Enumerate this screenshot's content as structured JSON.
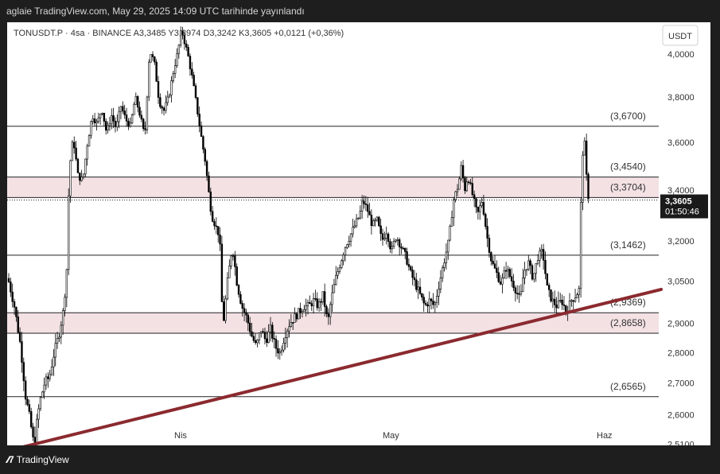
{
  "header": {
    "title": "aglaie TradingView.com, May 29, 2025 14:09 UTC tarihinde yayınlandı"
  },
  "footer": {
    "logo_icon": "tradingview-logo-icon",
    "brand": "TradingView"
  },
  "chart_data": {
    "type": "candlestick",
    "symbol_line": "TONUSDT.P · 4sa · BINANCE  A3,3485  Y3,3974  D3,3242  K3,3605  +0,0121 (+0,36%)",
    "currency": "USDT",
    "y_ticks": [
      "4,0000",
      "3,8000",
      "3,6000",
      "3,4000",
      "3,2000",
      "3,0500",
      "2,9000",
      "2,8000",
      "2,7000",
      "2,6000",
      "2,5100"
    ],
    "y_tick_values": [
      4.0,
      3.8,
      3.6,
      3.4,
      3.2,
      3.05,
      2.9,
      2.8,
      2.7,
      2.6,
      2.51
    ],
    "x_ticks": [
      "Nis",
      "May",
      "Haz"
    ],
    "levels": [
      {
        "label": "(3,6700)",
        "value": 3.67
      },
      {
        "label": "(3,4540)",
        "value": 3.454
      },
      {
        "label": "(3,3704)",
        "value": 3.3704
      },
      {
        "label": "(3,1462)",
        "value": 3.1462
      },
      {
        "label": "(2,9369)",
        "value": 2.9369
      },
      {
        "label": "(2,8658)",
        "value": 2.8658
      },
      {
        "label": "(2,6565)",
        "value": 2.6565
      }
    ],
    "zones": [
      {
        "from": 3.3704,
        "to": 3.454,
        "color": "#f3e1e4"
      },
      {
        "from": 2.8658,
        "to": 2.9369,
        "color": "#f3e1e4"
      }
    ],
    "trendline": {
      "color": "#8b2a2f",
      "from_price": 2.49,
      "to_price": 3.02
    },
    "price_tag": {
      "value": "3,3605",
      "countdown": "01:50:46",
      "price": 3.3605
    },
    "path_points": [
      [
        0,
        3.06
      ],
      [
        8,
        2.96
      ],
      [
        16,
        2.82
      ],
      [
        22,
        2.66
      ],
      [
        28,
        2.58
      ],
      [
        33,
        2.5
      ],
      [
        36,
        2.57
      ],
      [
        40,
        2.64
      ],
      [
        46,
        2.7
      ],
      [
        52,
        2.72
      ],
      [
        58,
        2.8
      ],
      [
        64,
        2.86
      ],
      [
        70,
        2.95
      ],
      [
        74,
        3.1
      ],
      [
        77,
        3.48
      ],
      [
        82,
        3.62
      ],
      [
        88,
        3.46
      ],
      [
        94,
        3.44
      ],
      [
        100,
        3.6
      ],
      [
        106,
        3.72
      ],
      [
        112,
        3.68
      ],
      [
        118,
        3.75
      ],
      [
        124,
        3.64
      ],
      [
        130,
        3.72
      ],
      [
        136,
        3.66
      ],
      [
        142,
        3.76
      ],
      [
        148,
        3.7
      ],
      [
        154,
        3.67
      ],
      [
        160,
        3.8
      ],
      [
        166,
        3.72
      ],
      [
        172,
        3.62
      ],
      [
        178,
        4.02
      ],
      [
        184,
        3.96
      ],
      [
        190,
        3.78
      ],
      [
        196,
        3.74
      ],
      [
        202,
        3.8
      ],
      [
        208,
        3.92
      ],
      [
        214,
        4.02
      ],
      [
        218,
        4.12
      ],
      [
        222,
        4.06
      ],
      [
        226,
        4.0
      ],
      [
        232,
        3.88
      ],
      [
        238,
        3.74
      ],
      [
        244,
        3.6
      ],
      [
        248,
        3.52
      ],
      [
        252,
        3.4
      ],
      [
        256,
        3.3
      ],
      [
        262,
        3.25
      ],
      [
        266,
        3.22
      ],
      [
        270,
        2.88
      ],
      [
        276,
        3.05
      ],
      [
        282,
        3.18
      ],
      [
        288,
        3.04
      ],
      [
        294,
        2.96
      ],
      [
        300,
        2.92
      ],
      [
        306,
        2.86
      ],
      [
        312,
        2.82
      ],
      [
        318,
        2.88
      ],
      [
        324,
        2.84
      ],
      [
        330,
        2.88
      ],
      [
        336,
        2.82
      ],
      [
        342,
        2.8
      ],
      [
        348,
        2.86
      ],
      [
        354,
        2.9
      ],
      [
        360,
        2.92
      ],
      [
        366,
        2.94
      ],
      [
        372,
        2.96
      ],
      [
        378,
        2.96
      ],
      [
        384,
        2.98
      ],
      [
        390,
        2.96
      ],
      [
        396,
        3.0
      ],
      [
        402,
        2.9
      ],
      [
        406,
        2.98
      ],
      [
        412,
        3.06
      ],
      [
        418,
        3.12
      ],
      [
        424,
        3.18
      ],
      [
        430,
        3.22
      ],
      [
        436,
        3.26
      ],
      [
        442,
        3.3
      ],
      [
        446,
        3.36
      ],
      [
        452,
        3.32
      ],
      [
        458,
        3.26
      ],
      [
        464,
        3.28
      ],
      [
        470,
        3.2
      ],
      [
        476,
        3.24
      ],
      [
        482,
        3.16
      ],
      [
        488,
        3.22
      ],
      [
        494,
        3.18
      ],
      [
        500,
        3.14
      ],
      [
        506,
        3.08
      ],
      [
        512,
        3.04
      ],
      [
        518,
        3.0
      ],
      [
        524,
        2.96
      ],
      [
        530,
        2.98
      ],
      [
        536,
        2.96
      ],
      [
        542,
        3.04
      ],
      [
        548,
        3.12
      ],
      [
        554,
        3.2
      ],
      [
        560,
        3.36
      ],
      [
        566,
        3.42
      ],
      [
        570,
        3.5
      ],
      [
        574,
        3.4
      ],
      [
        578,
        3.46
      ],
      [
        584,
        3.38
      ],
      [
        590,
        3.3
      ],
      [
        596,
        3.36
      ],
      [
        602,
        3.22
      ],
      [
        608,
        3.12
      ],
      [
        614,
        3.08
      ],
      [
        620,
        3.04
      ],
      [
        626,
        3.1
      ],
      [
        632,
        3.06
      ],
      [
        638,
        3.02
      ],
      [
        644,
        2.98
      ],
      [
        648,
        3.08
      ],
      [
        654,
        3.12
      ],
      [
        660,
        3.06
      ],
      [
        666,
        3.14
      ],
      [
        672,
        3.16
      ],
      [
        678,
        3.02
      ],
      [
        684,
        2.98
      ],
      [
        690,
        2.96
      ],
      [
        696,
        2.98
      ],
      [
        702,
        2.94
      ],
      [
        708,
        2.98
      ],
      [
        714,
        3.0
      ],
      [
        718,
        3.02
      ],
      [
        721,
        3.48
      ],
      [
        724,
        3.64
      ],
      [
        727,
        3.46
      ],
      [
        730,
        3.36
      ]
    ]
  }
}
